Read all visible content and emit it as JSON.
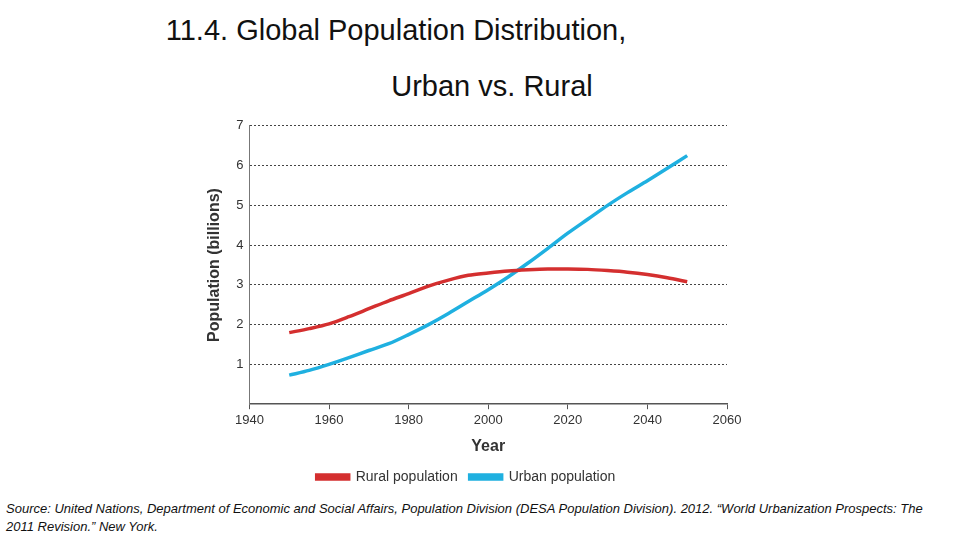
{
  "chart_data": {
    "type": "line",
    "title": [
      "11.4. Global Population Distribution,",
      "Urban vs. Rural"
    ],
    "source": "Source: United Nations, Department of Economic and Social Affairs, Population Division (DESA Population Division). 2012. “World Urbanization Prospects: The 2011 Revision.” New York.",
    "x_label": "Year",
    "y_label": "Population (billions)",
    "x": [
      1950,
      1955,
      1960,
      1965,
      1970,
      1975,
      1980,
      1985,
      1990,
      1995,
      2000,
      2005,
      2010,
      2015,
      2020,
      2025,
      2030,
      2035,
      2040,
      2045,
      2050
    ],
    "series": [
      {
        "name": "Rural population",
        "color": "#d42f2f",
        "values": [
          1.8,
          1.9,
          2.02,
          2.2,
          2.4,
          2.6,
          2.78,
          2.97,
          3.12,
          3.24,
          3.3,
          3.35,
          3.38,
          3.4,
          3.4,
          3.39,
          3.36,
          3.32,
          3.26,
          3.18,
          3.08
        ]
      },
      {
        "name": "Urban population",
        "color": "#1fb0e0",
        "values": [
          0.73,
          0.85,
          1.0,
          1.17,
          1.35,
          1.52,
          1.75,
          2.0,
          2.28,
          2.58,
          2.88,
          3.2,
          3.55,
          3.92,
          4.3,
          4.65,
          5.0,
          5.32,
          5.62,
          5.93,
          6.25
        ]
      }
    ],
    "xlim": [
      1940,
      2060
    ],
    "xticks": [
      1940,
      1960,
      1980,
      2000,
      2020,
      2040,
      2060
    ],
    "ylim": [
      0,
      7
    ],
    "yticks": [
      1,
      2,
      3,
      4,
      5,
      6,
      7
    ],
    "grid": true,
    "legend": "bottom"
  }
}
